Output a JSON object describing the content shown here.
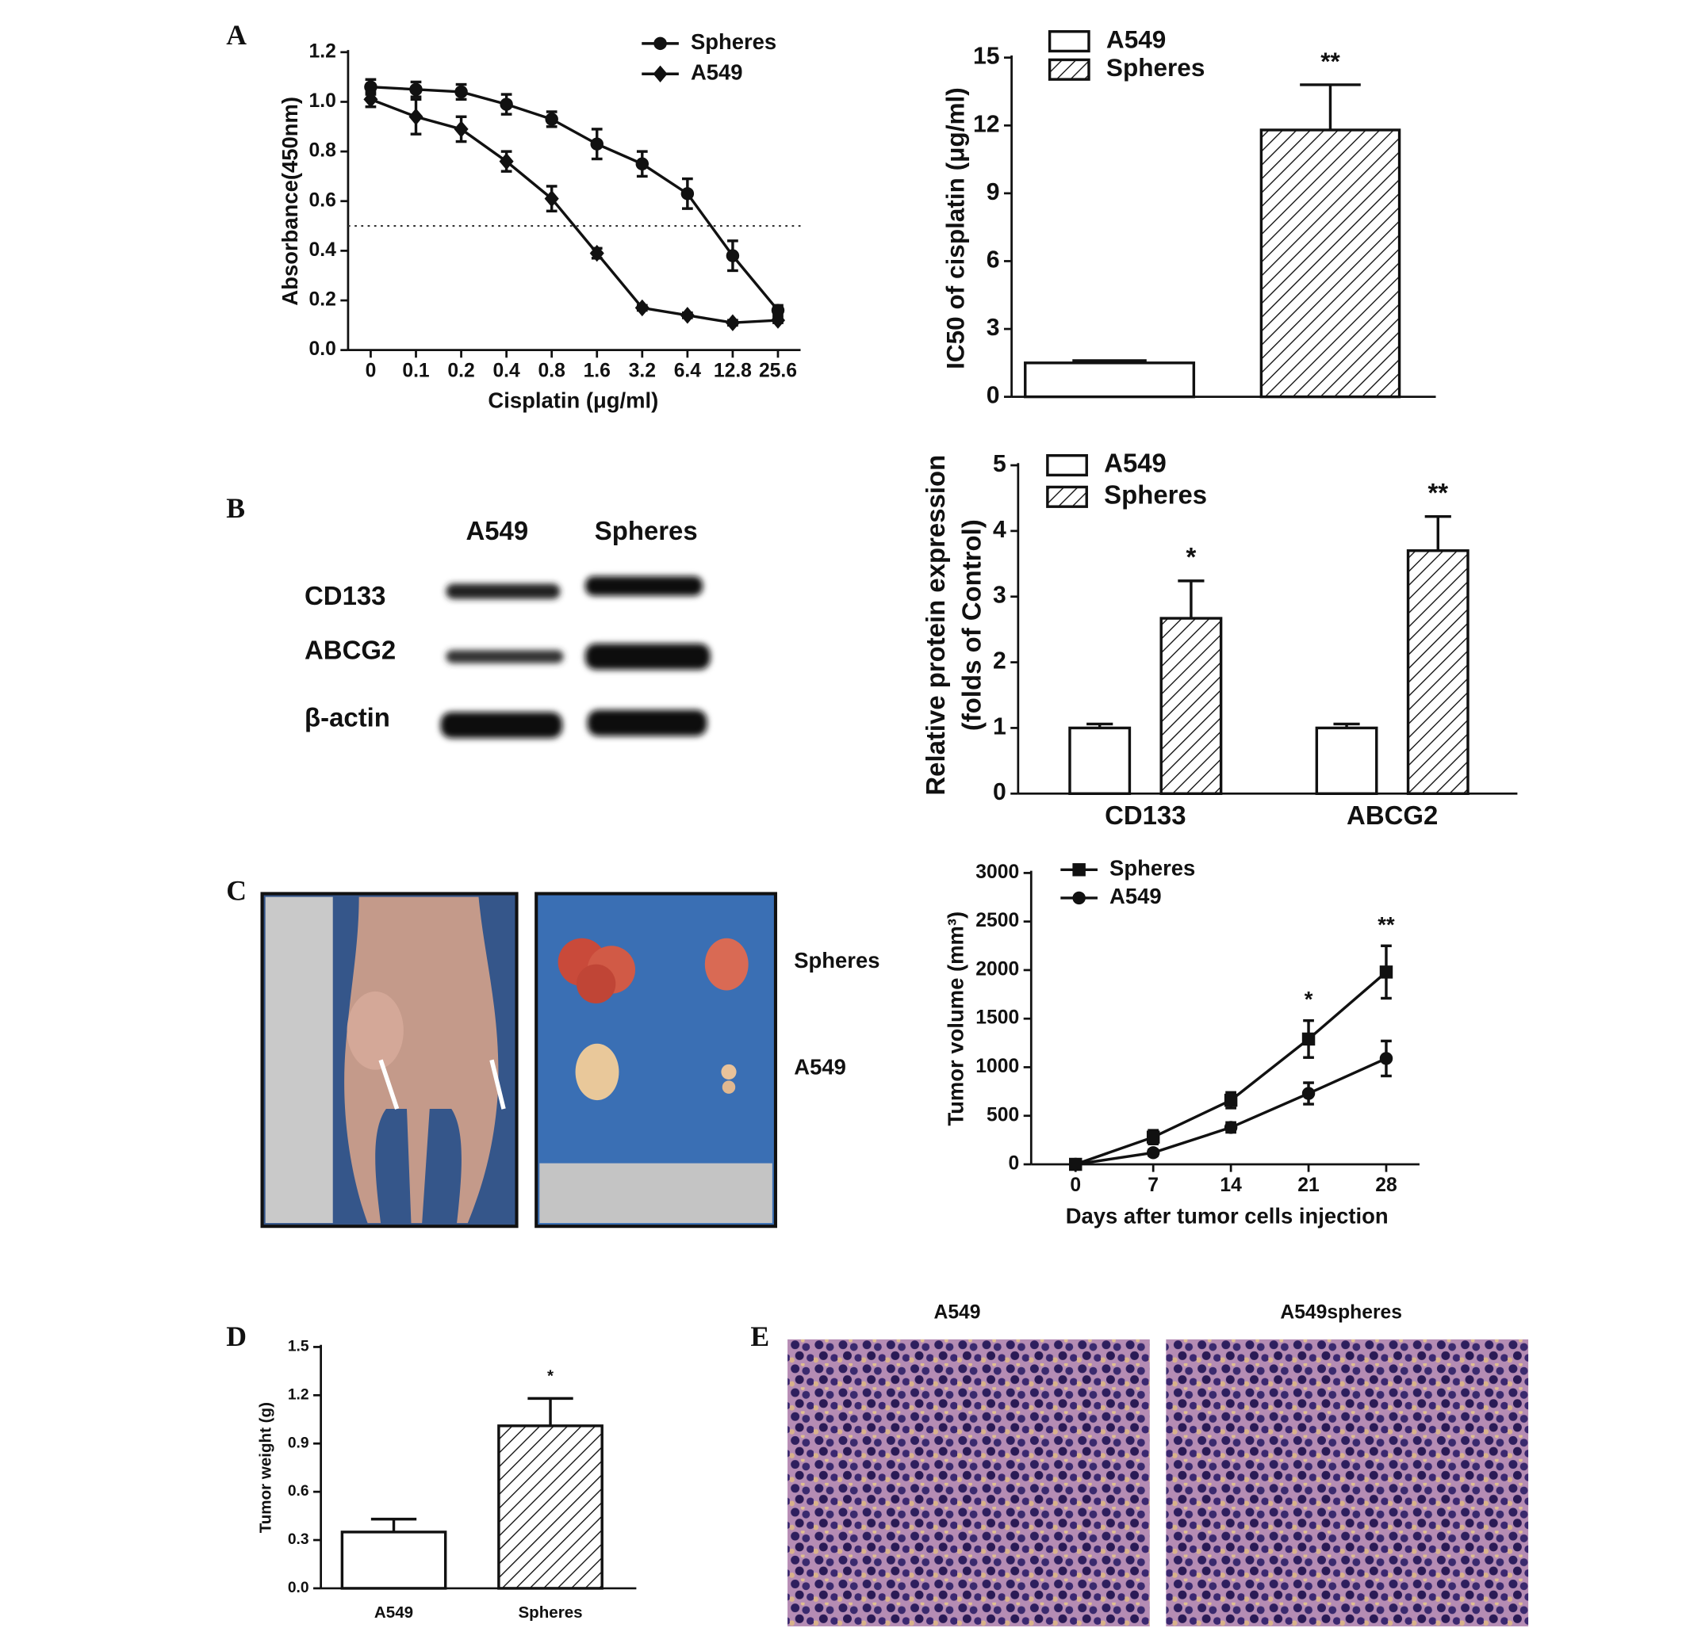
{
  "panel_labels": [
    "A",
    "B",
    "C",
    "D",
    "E"
  ],
  "chart_data": [
    {
      "type": "line",
      "xlabel": "Cisplatin (μg/ml)",
      "ylabel": "Absorbance(450nm)",
      "categories": [
        "0",
        "0.1",
        "0.2",
        "0.4",
        "0.8",
        "1.6",
        "3.2",
        "6.4",
        "12.8",
        "25.6"
      ],
      "ylim": [
        0,
        1.2
      ],
      "yticks": [
        {
          "value": 0,
          "label": "0.0"
        },
        {
          "value": 0.2,
          "label": "0.2"
        },
        {
          "value": 0.4,
          "label": "0.4"
        },
        {
          "value": 0.6,
          "label": "0.6"
        },
        {
          "value": 0.8,
          "label": "0.8"
        },
        {
          "value": 1,
          "label": "1.0"
        },
        {
          "value": 1.2,
          "label": "1.2"
        }
      ],
      "reference_line": 0.5,
      "series": [
        {
          "name": "Spheres",
          "color": "#111111",
          "marker": "circle",
          "values": [
            1.06,
            1.05,
            1.04,
            0.99,
            0.93,
            0.83,
            0.75,
            0.63,
            0.38,
            0.16
          ],
          "errors": [
            0.03,
            0.03,
            0.03,
            0.04,
            0.03,
            0.06,
            0.05,
            0.06,
            0.06,
            0.02
          ]
        },
        {
          "name": "A549",
          "color": "#111111",
          "marker": "diamond",
          "values": [
            1.01,
            0.94,
            0.89,
            0.76,
            0.61,
            0.39,
            0.17,
            0.14,
            0.11,
            0.12
          ],
          "errors": [
            0.03,
            0.07,
            0.05,
            0.04,
            0.05,
            0.02,
            0.01,
            0.01,
            0.01,
            0.01
          ]
        }
      ]
    },
    {
      "type": "bar",
      "ylabel": "IC50 of cisplatin (μg/ml)",
      "categories": [
        null
      ],
      "ylim": [
        0,
        15
      ],
      "yticks": [
        0,
        3,
        6,
        9,
        12,
        15
      ],
      "series": [
        {
          "name": "A549",
          "color": "#111111",
          "pattern": "none",
          "values": [
            1.5
          ],
          "errors": [
            0.1
          ],
          "annotations": [
            null
          ]
        },
        {
          "name": "Spheres",
          "color": "#111111",
          "pattern": "hatch",
          "values": [
            11.8
          ],
          "errors": [
            2.0
          ],
          "annotations": [
            "**"
          ]
        }
      ]
    },
    {
      "type": "bar",
      "ylabel_lines": [
        "Relative protein expression",
        "(folds of Control)"
      ],
      "categories": [
        "CD133",
        "ABCG2"
      ],
      "ylim": [
        0,
        5
      ],
      "yticks": [
        0,
        1,
        2,
        3,
        4,
        5
      ],
      "series": [
        {
          "name": "A549",
          "color": "#111111",
          "pattern": "none",
          "values": [
            1.0,
            1.0
          ],
          "errors": [
            0.06,
            0.06
          ],
          "annotations": [
            null,
            null
          ]
        },
        {
          "name": "Spheres",
          "color": "#111111",
          "pattern": "hatch",
          "values": [
            2.67,
            3.7
          ],
          "errors": [
            0.57,
            0.52
          ],
          "annotations": [
            "*",
            "**"
          ]
        }
      ]
    },
    {
      "type": "line",
      "xlabel": "Days after tumor cells injection",
      "ylabel": "Tumor volume (mm³)",
      "x": [
        0,
        7,
        14,
        21,
        28
      ],
      "xlim": [
        -4,
        31
      ],
      "xticks": [
        0,
        7,
        14,
        21,
        28
      ],
      "ylim": [
        0,
        3000
      ],
      "yticks": [
        0,
        500,
        1000,
        1500,
        2000,
        2500,
        3000
      ],
      "series": [
        {
          "name": "Spheres",
          "color": "#111111",
          "marker": "square",
          "values": [
            0,
            280,
            660,
            1290,
            1980
          ],
          "errors": [
            0,
            70,
            80,
            190,
            270
          ],
          "annotations": [
            null,
            null,
            null,
            "*",
            "**"
          ]
        },
        {
          "name": "A549",
          "color": "#111111",
          "marker": "circle",
          "values": [
            0,
            120,
            380,
            730,
            1090
          ],
          "errors": [
            0,
            30,
            50,
            110,
            180
          ]
        }
      ]
    },
    {
      "type": "bar",
      "ylabel": "Tumor weight (g)",
      "categories": [
        "A549",
        "Spheres"
      ],
      "ylim": [
        0,
        1.5
      ],
      "yticks": [
        {
          "value": 0,
          "label": "0.0"
        },
        {
          "value": 0.3,
          "label": "0.3"
        },
        {
          "value": 0.6,
          "label": "0.6"
        },
        {
          "value": 0.9,
          "label": "0.9"
        },
        {
          "value": 1.2,
          "label": "1.2"
        },
        {
          "value": 1.5,
          "label": "1.5"
        }
      ],
      "color": "#111111",
      "patterns": [
        "none",
        "hatch"
      ],
      "values": [
        0.35,
        1.01
      ],
      "errors": [
        0.08,
        0.17
      ],
      "annotations": [
        null,
        "*"
      ]
    }
  ],
  "blot": {
    "columns": [
      "A549",
      "Spheres"
    ],
    "rows": [
      "CD133",
      "ABCG2",
      "β-actin"
    ]
  },
  "photo": {
    "labels": [
      "Spheres",
      "A549"
    ]
  },
  "histology": {
    "titles": [
      "A549",
      "A549spheres"
    ]
  }
}
